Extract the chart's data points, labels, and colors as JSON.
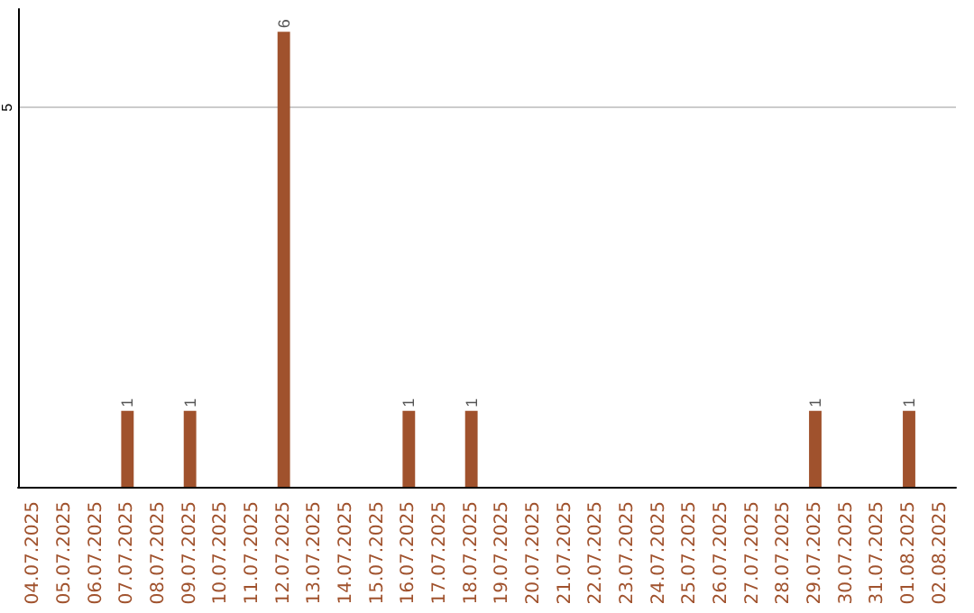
{
  "chart_data": {
    "type": "bar",
    "categories": [
      "04.07.2025",
      "05.07.2025",
      "06.07.2025",
      "07.07.2025",
      "08.07.2025",
      "09.07.2025",
      "10.07.2025",
      "11.07.2025",
      "12.07.2025",
      "13.07.2025",
      "14.07.2025",
      "15.07.2025",
      "16.07.2025",
      "17.07.2025",
      "18.07.2025",
      "19.07.2025",
      "20.07.2025",
      "21.07.2025",
      "22.07.2025",
      "23.07.2025",
      "24.07.2025",
      "25.07.2025",
      "26.07.2025",
      "27.07.2025",
      "28.07.2025",
      "29.07.2025",
      "30.07.2025",
      "31.07.2025",
      "01.08.2025",
      "02.08.2025"
    ],
    "values": [
      0,
      0,
      0,
      1,
      0,
      1,
      0,
      0,
      6,
      0,
      0,
      0,
      1,
      0,
      1,
      0,
      0,
      0,
      0,
      0,
      0,
      0,
      0,
      0,
      0,
      1,
      0,
      0,
      1,
      0
    ],
    "value_labels": [
      null,
      null,
      null,
      "1",
      null,
      "1",
      null,
      null,
      "6",
      null,
      null,
      null,
      "1",
      null,
      "1",
      null,
      null,
      null,
      null,
      null,
      null,
      null,
      null,
      null,
      null,
      "1",
      null,
      null,
      "1",
      null
    ],
    "color": "#a0522d",
    "ylim": [
      0,
      6.3
    ],
    "yticks": [
      5
    ],
    "grid": "y"
  }
}
